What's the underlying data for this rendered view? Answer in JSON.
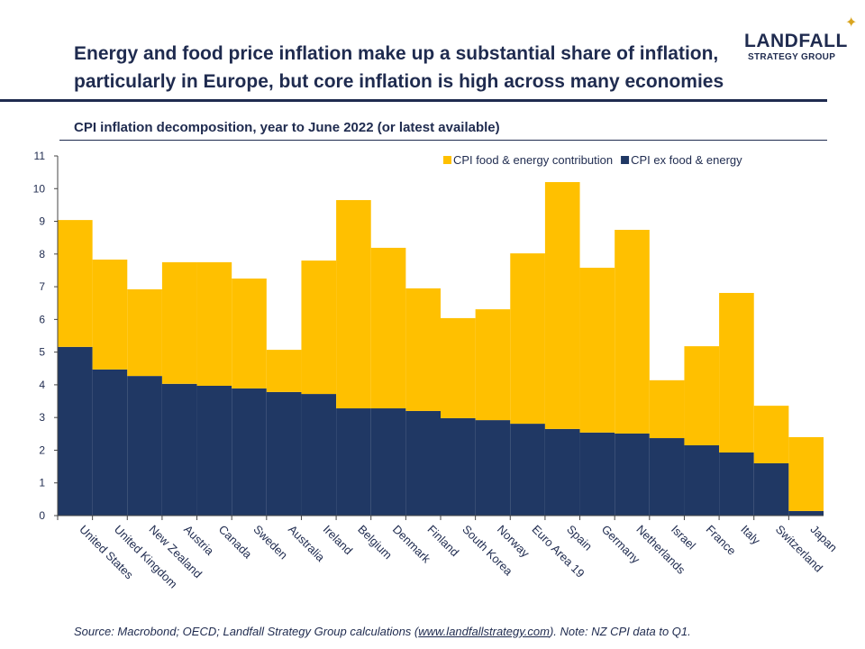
{
  "header": {
    "title": "Energy and food price inflation make up a substantial share of inflation, particularly in Europe, but core inflation is high across many economies",
    "logo_line1": "LANDFALL",
    "logo_line2": "STRATEGY GROUP"
  },
  "source": {
    "prefix": "Source: Macrobond; OECD; Landfall Strategy Group calculations (",
    "link": "www.landfallstrategy.com",
    "suffix": "). Note: NZ CPI data to Q1."
  },
  "chart_data": {
    "type": "bar",
    "stacked": true,
    "title": "CPI inflation decomposition, year to June 2022 (or latest available)",
    "xlabel": "",
    "ylabel": "",
    "ylim": [
      0,
      11
    ],
    "yticks": [
      0,
      1,
      2,
      3,
      4,
      5,
      6,
      7,
      8,
      9,
      10,
      11
    ],
    "legend_position": "top-right",
    "categories": [
      "United States",
      "United Kingdom",
      "New Zealand",
      "Austria",
      "Canada",
      "Sweden",
      "Australia",
      "Ireland",
      "Belgium",
      "Denmark",
      "Finland",
      "South Korea",
      "Norway",
      "Euro Area 19",
      "Spain",
      "Germany",
      "Netherlands",
      "Israel",
      "France",
      "Italy",
      "Switzerland",
      "Japan"
    ],
    "series": [
      {
        "name": "CPI ex food & energy",
        "color": "#203864",
        "values": [
          5.16,
          4.47,
          4.27,
          4.03,
          3.97,
          3.89,
          3.78,
          3.72,
          3.28,
          3.28,
          3.2,
          2.98,
          2.92,
          2.81,
          2.65,
          2.54,
          2.51,
          2.37,
          2.15,
          1.93,
          1.6,
          0.14
        ]
      },
      {
        "name": "CPI food & energy contribution",
        "color": "#ffc000",
        "values": [
          3.88,
          3.36,
          2.65,
          3.72,
          3.78,
          3.36,
          1.29,
          4.08,
          6.37,
          4.91,
          3.75,
          3.06,
          3.39,
          5.21,
          7.55,
          5.04,
          6.23,
          1.77,
          3.03,
          4.88,
          1.76,
          2.26
        ]
      }
    ],
    "legend_order": [
      1,
      0
    ]
  }
}
